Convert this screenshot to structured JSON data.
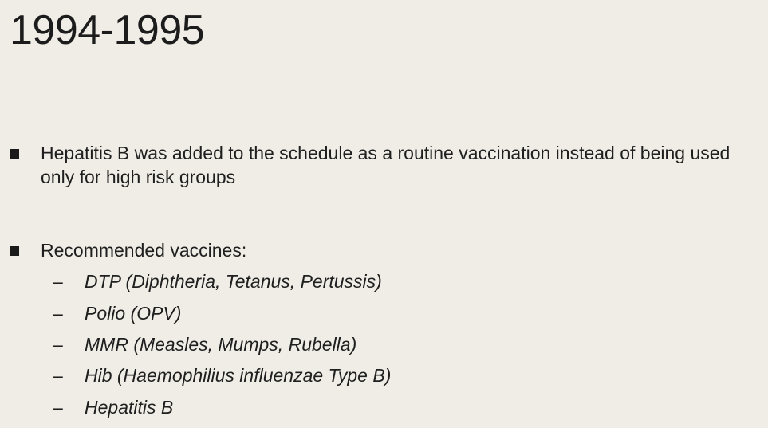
{
  "slide": {
    "title": "1994-1995",
    "bullets": [
      {
        "text": "Hepatitis B was added to the schedule as a routine vaccination instead of being used only for high risk groups"
      },
      {
        "text": "Recommended vaccines:",
        "sub_items": [
          {
            "dash": "–",
            "text": "DTP (Diphtheria, Tetanus, Pertussis)"
          },
          {
            "dash": "–",
            "text": "Polio (OPV)"
          },
          {
            "dash": "–",
            "text": "MMR (Measles, Mumps, Rubella)"
          },
          {
            "dash": "–",
            "text": "Hib (Haemophilius influenzae Type B)"
          },
          {
            "dash": "–",
            "text": "Hepatitis B"
          }
        ]
      }
    ]
  }
}
